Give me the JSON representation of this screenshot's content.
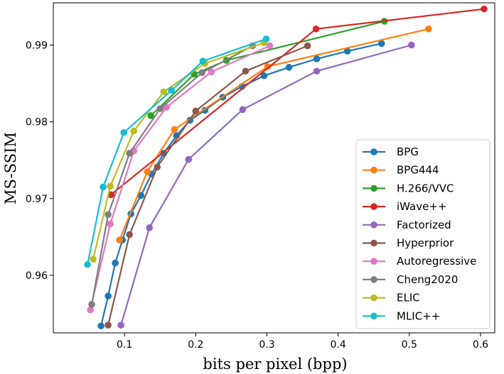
{
  "chart_data": {
    "type": "line",
    "title": "",
    "xlabel": "bits per pixel (bpp)",
    "ylabel": "MS-SSIM",
    "xlim": [
      0.0,
      0.62
    ],
    "ylim": [
      0.9525,
      0.9955
    ],
    "xticks": [
      0.1,
      0.2,
      0.3,
      0.4,
      0.5,
      0.6
    ],
    "xtick_labels": [
      "0.1",
      "0.2",
      "0.3",
      "0.4",
      "0.5",
      "0.6"
    ],
    "yticks": [
      0.96,
      0.97,
      0.98,
      0.99
    ],
    "ytick_labels": [
      "0.96",
      "0.97",
      "0.98",
      "0.99"
    ],
    "grid": false,
    "legend_position": "bottom-right",
    "series": [
      {
        "name": "BPG",
        "color": "#1f77b4",
        "x": [
          0.067,
          0.077,
          0.087,
          0.097,
          0.109,
          0.123,
          0.138,
          0.155,
          0.173,
          0.192,
          0.213,
          0.238,
          0.265,
          0.296,
          0.331,
          0.37,
          0.413,
          0.461
        ],
        "y": [
          0.9534,
          0.9573,
          0.9616,
          0.9646,
          0.968,
          0.9704,
          0.9732,
          0.9759,
          0.9782,
          0.9802,
          0.9815,
          0.9832,
          0.9846,
          0.986,
          0.9871,
          0.9882,
          0.9892,
          0.9902
        ]
      },
      {
        "name": "BPG444",
        "color": "#ff7f0e",
        "x": [
          0.093,
          0.132,
          0.17,
          0.301,
          0.527
        ],
        "y": [
          0.9646,
          0.9735,
          0.979,
          0.9872,
          0.9921
        ]
      },
      {
        "name": "H.266/VVC",
        "color": "#2ca02c",
        "x": [
          0.137,
          0.198,
          0.243,
          0.465
        ],
        "y": [
          0.9808,
          0.9862,
          0.988,
          0.9931
        ]
      },
      {
        "name": "iWave++",
        "color": "#d62728",
        "x": [
          0.081,
          0.369,
          0.605
        ],
        "y": [
          0.9705,
          0.9921,
          0.9947
        ]
      },
      {
        "name": "Factorized",
        "color": "#9467bd",
        "x": [
          0.095,
          0.135,
          0.19,
          0.266,
          0.37,
          0.503
        ],
        "y": [
          0.9535,
          0.9662,
          0.9751,
          0.9816,
          0.9866,
          0.99
        ]
      },
      {
        "name": "Hyperprior",
        "color": "#8c564b",
        "x": [
          0.077,
          0.107,
          0.146,
          0.2,
          0.27,
          0.357
        ],
        "y": [
          0.9535,
          0.9653,
          0.9741,
          0.9814,
          0.9866,
          0.9899
        ]
      },
      {
        "name": "Autoregressive",
        "color": "#e377c2",
        "x": [
          0.052,
          0.08,
          0.113,
          0.159,
          0.222,
          0.304
        ],
        "y": [
          0.9555,
          0.9667,
          0.9762,
          0.9819,
          0.9865,
          0.9899
        ]
      },
      {
        "name": "Cheng2020",
        "color": "#7f7f7f",
        "x": [
          0.054,
          0.077,
          0.107,
          0.15,
          0.209,
          0.28
        ],
        "y": [
          0.9562,
          0.9679,
          0.9759,
          0.9817,
          0.9864,
          0.9899
        ]
      },
      {
        "name": "ELIC",
        "color": "#bcbd22",
        "x": [
          0.056,
          0.08,
          0.113,
          0.155,
          0.213,
          0.296
        ],
        "y": [
          0.9621,
          0.9716,
          0.9788,
          0.9839,
          0.9876,
          0.9903
        ]
      },
      {
        "name": "MLIC++",
        "color": "#17becf",
        "x": [
          0.048,
          0.07,
          0.099,
          0.166,
          0.21,
          0.299
        ],
        "y": [
          0.9614,
          0.9715,
          0.9786,
          0.9841,
          0.9879,
          0.9908
        ]
      }
    ]
  }
}
